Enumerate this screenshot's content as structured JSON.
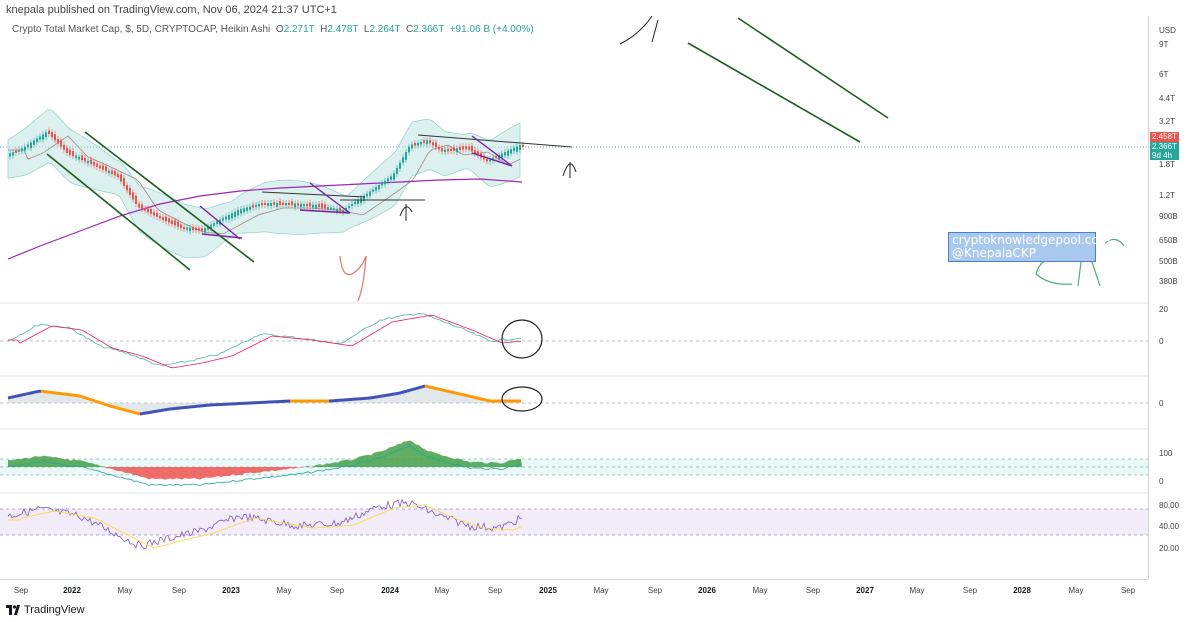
{
  "header": {
    "publisher": "knepala published on TradingView.com, Nov 06, 2024 21:37 UTC+1",
    "symbol": "Crypto Total Market Cap, $, 5D, CRYPTOCAP, Heikin Ashi",
    "open_label": "O",
    "open": "2.271T",
    "high_label": "H",
    "high": "2.478T",
    "low_label": "L",
    "low": "2.264T",
    "close_label": "C",
    "close": "2.366T",
    "change": "+91.06 B (+4.00%)"
  },
  "price_axis": {
    "currency": "USD",
    "ticks": [
      "9T",
      "6T",
      "4.4T",
      "3.2T",
      "1.8T",
      "1.2T",
      "900B",
      "650B",
      "500B",
      "380B"
    ],
    "last_price_red": "2.458T",
    "last_price_green": "2.366T",
    "countdown": "9d 4h"
  },
  "osc_axes": {
    "macd": [
      "20",
      "0"
    ],
    "ao": [
      "0"
    ],
    "dmi": [
      "100",
      "0"
    ],
    "rsi": [
      "80.00",
      "40.00",
      "20.00"
    ]
  },
  "time_axis": {
    "labels": [
      {
        "t": "Sep",
        "b": false
      },
      {
        "t": "2022",
        "b": true
      },
      {
        "t": "May",
        "b": false
      },
      {
        "t": "Sep",
        "b": false
      },
      {
        "t": "2023",
        "b": true
      },
      {
        "t": "May",
        "b": false
      },
      {
        "t": "Sep",
        "b": false
      },
      {
        "t": "2024",
        "b": true
      },
      {
        "t": "May",
        "b": false
      },
      {
        "t": "Sep",
        "b": false
      },
      {
        "t": "2025",
        "b": true
      },
      {
        "t": "May",
        "b": false
      },
      {
        "t": "Sep",
        "b": false
      },
      {
        "t": "2026",
        "b": true
      },
      {
        "t": "May",
        "b": false
      },
      {
        "t": "Sep",
        "b": false
      },
      {
        "t": "2027",
        "b": true
      },
      {
        "t": "May",
        "b": false
      },
      {
        "t": "Sep",
        "b": false
      },
      {
        "t": "2028",
        "b": true
      },
      {
        "t": "May",
        "b": false
      },
      {
        "t": "Sep",
        "b": false
      }
    ]
  },
  "watermark": {
    "line1": "cryptoknowledgepool.com",
    "line2": "@KnepalaCKP"
  },
  "footer": {
    "brand": "TradingView"
  },
  "colors": {
    "up": "#26a69a",
    "down": "#ef5350",
    "sma200": "#9c27b0",
    "bollinger_fill": "#b2dfdb",
    "trendline": "#1b5e20",
    "wedge": "#7b1fa2",
    "rsi_band": "#ede7f6",
    "dmi_band": "#e0f2f1"
  },
  "chart_data": {
    "type": "line",
    "title": "Crypto Total Market Cap, $, 5D, CRYPTOCAP, Heikin Ashi",
    "y_scale": "log",
    "ylim": [
      380000000000,
      9000000000000
    ],
    "x": [
      "2021-09",
      "2021-11",
      "2022-01",
      "2022-03",
      "2022-05",
      "2022-07",
      "2022-09",
      "2022-11",
      "2023-01",
      "2023-03",
      "2023-05",
      "2023-07",
      "2023-09",
      "2023-11",
      "2024-01",
      "2024-03",
      "2024-05",
      "2024-07",
      "2024-09",
      "2024-11"
    ],
    "series": [
      {
        "name": "Heikin Ashi close",
        "unit": "USD",
        "values": [
          2050000000000.0,
          2850000000000.0,
          2150000000000.0,
          1850000000000.0,
          1250000000000.0,
          980000000000.0,
          960000000000.0,
          820000000000.0,
          1020000000000.0,
          1150000000000.0,
          1170000000000.0,
          1190000000000.0,
          1070000000000.0,
          1350000000000.0,
          1720000000000.0,
          2600000000000.0,
          2450000000000.0,
          2300000000000.0,
          2100000000000.0,
          2366000000000.0
        ]
      }
    ],
    "ohlc_last": {
      "open": 2271000000000.0,
      "high": 2478000000000.0,
      "low": 2264000000000.0,
      "close": 2366000000000.0
    }
  }
}
